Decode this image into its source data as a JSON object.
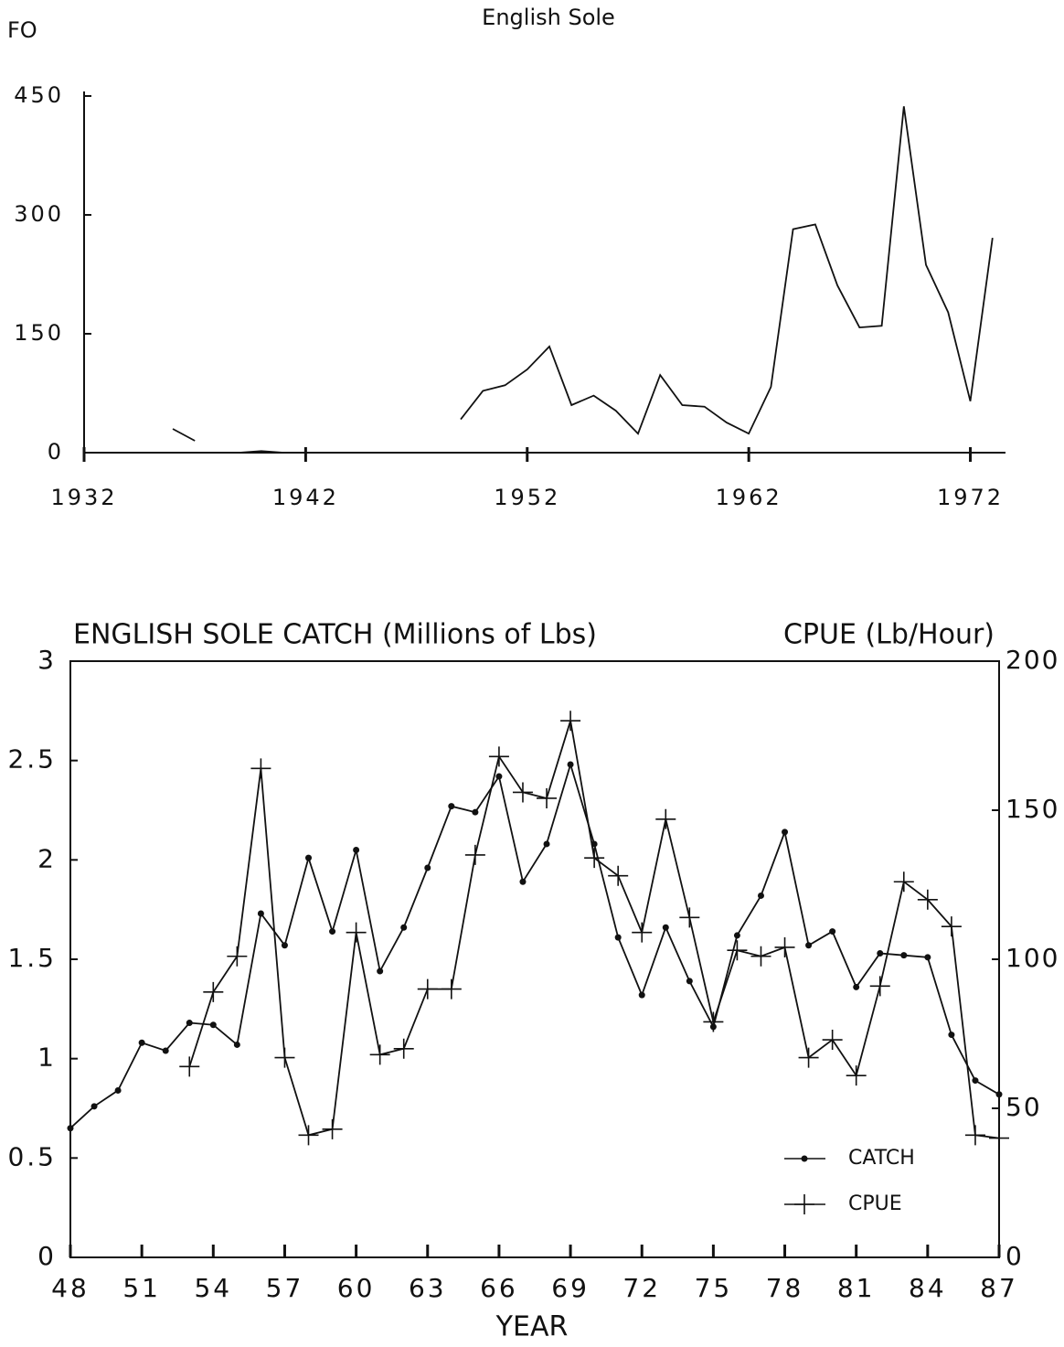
{
  "chart_data": [
    {
      "type": "line",
      "title": "English Sole",
      "figure_label": "FO",
      "x": [
        1932,
        1933,
        1934,
        1935,
        1936,
        1937,
        1938,
        1939,
        1940,
        1941,
        1942,
        1943,
        1944,
        1945,
        1946,
        1947,
        1948,
        1949,
        1950,
        1951,
        1952,
        1953,
        1954,
        1955,
        1956,
        1957,
        1958,
        1959,
        1960,
        1961,
        1962,
        1963,
        1964,
        1965,
        1966,
        1967,
        1968,
        1969,
        1970,
        1971,
        1972,
        1973
      ],
      "values": [
        0,
        0,
        0,
        null,
        30,
        15,
        null,
        0,
        2,
        0,
        null,
        null,
        null,
        null,
        null,
        null,
        null,
        42,
        78,
        85,
        105,
        134,
        60,
        72,
        53,
        24,
        98,
        60,
        58,
        38,
        24,
        83,
        282,
        288,
        211,
        158,
        160,
        437,
        237,
        177,
        65,
        271
      ],
      "color": "#111111",
      "xlim": [
        1932,
        1974
      ],
      "xticks": [
        1932,
        1942,
        1952,
        1962,
        1972
      ],
      "ylim": [
        0,
        450
      ],
      "yticks": [
        0,
        150,
        300,
        450
      ]
    },
    {
      "type": "line",
      "title": "ENGLISH SOLE CATCH (Millions of Lbs)",
      "y2label": "CPUE (Lb/Hour)",
      "xlabel": "YEAR",
      "x": [
        48,
        49,
        50,
        51,
        52,
        53,
        54,
        55,
        56,
        57,
        58,
        59,
        60,
        61,
        62,
        63,
        64,
        65,
        66,
        67,
        68,
        69,
        70,
        71,
        72,
        73,
        74,
        75,
        76,
        77,
        78,
        79,
        80,
        81,
        82,
        83,
        84,
        85,
        86,
        87
      ],
      "series": [
        {
          "name": "CATCH",
          "color": "#111111",
          "marker": "dot",
          "values": [
            0.65,
            0.76,
            0.84,
            1.08,
            1.04,
            1.18,
            1.17,
            1.07,
            1.73,
            1.57,
            2.01,
            1.64,
            2.05,
            1.44,
            1.66,
            1.96,
            2.27,
            2.24,
            2.42,
            1.89,
            2.08,
            2.48,
            2.08,
            1.61,
            1.32,
            1.66,
            1.39,
            1.16,
            1.62,
            1.82,
            2.14,
            1.57,
            1.64,
            1.36,
            1.53,
            1.52,
            1.51,
            1.12,
            0.89,
            0.82
          ]
        },
        {
          "name": "CPUE",
          "color": "#111111",
          "marker": "plus",
          "axis": "y2",
          "values": [
            null,
            null,
            null,
            null,
            null,
            64,
            89,
            101,
            164,
            67,
            41,
            43,
            109,
            68,
            70,
            90,
            90,
            135,
            168,
            156,
            154,
            180,
            134,
            128,
            109,
            147,
            114,
            79,
            103,
            101,
            104,
            67,
            73,
            61,
            91,
            126,
            120,
            111,
            41,
            40
          ]
        }
      ],
      "xlim": [
        48,
        87
      ],
      "xticks": [
        48,
        51,
        54,
        57,
        60,
        63,
        66,
        69,
        72,
        75,
        78,
        81,
        84,
        87
      ],
      "ylim": [
        0,
        3
      ],
      "yticks": [
        0,
        0.5,
        1,
        1.5,
        2,
        2.5,
        3
      ],
      "y2lim": [
        0,
        200
      ],
      "y2ticks": [
        0,
        50,
        100,
        150,
        200
      ],
      "legend": "lower-right"
    }
  ]
}
